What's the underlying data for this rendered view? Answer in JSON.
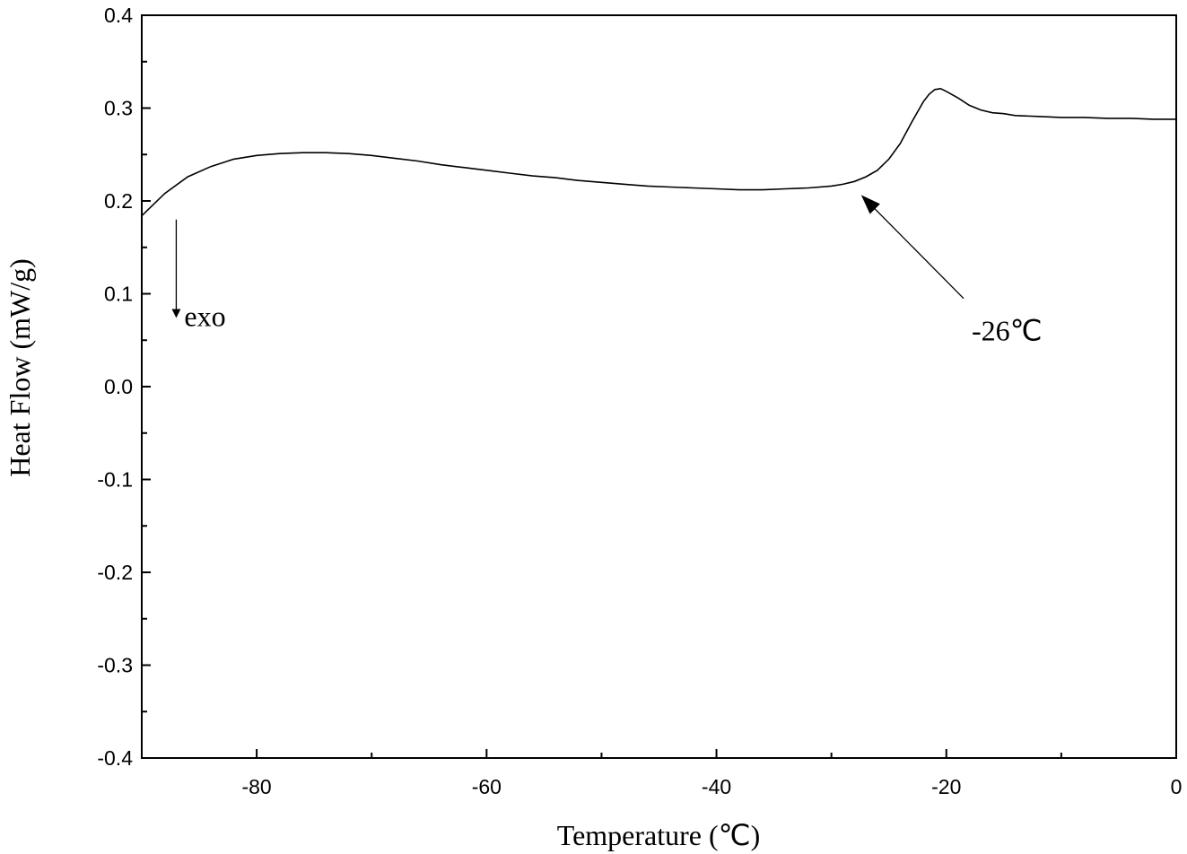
{
  "chart_data": {
    "type": "line",
    "xlabel": "Temperature (℃)",
    "ylabel": "Heat Flow (mW/g)",
    "xlim": [
      -90,
      0
    ],
    "ylim": [
      -0.4,
      0.4
    ],
    "x_ticks": [
      -80,
      -60,
      -40,
      -20,
      0
    ],
    "x_tick_labels": [
      "-80",
      "-60",
      "-40",
      "-20",
      "0"
    ],
    "y_ticks": [
      0.4,
      0.3,
      0.2,
      0.1,
      0.0,
      -0.1,
      -0.2,
      -0.3,
      -0.4
    ],
    "y_tick_labels": [
      "0.4",
      "0.3",
      "0.2",
      "0.1",
      "0.0",
      "-0.1",
      "-0.2",
      "-0.3",
      "-0.4"
    ],
    "grid": false,
    "series": [
      {
        "color": "#000000",
        "x": [
          -90,
          -88,
          -86,
          -84,
          -82,
          -80,
          -78,
          -76,
          -74,
          -72,
          -70,
          -68,
          -66,
          -64,
          -62,
          -60,
          -58,
          -56,
          -54,
          -52,
          -50,
          -48,
          -46,
          -44,
          -42,
          -40,
          -38,
          -36,
          -34,
          -32,
          -30,
          -29,
          -28,
          -27,
          -26,
          -25,
          -24,
          -23,
          -22,
          -21.5,
          -21,
          -20.5,
          -20,
          -19,
          -18,
          -17,
          -16,
          -15,
          -14,
          -12,
          -10,
          -8,
          -6,
          -4,
          -2,
          0
        ],
        "y": [
          0.184,
          0.208,
          0.226,
          0.237,
          0.245,
          0.249,
          0.251,
          0.252,
          0.252,
          0.251,
          0.249,
          0.246,
          0.243,
          0.239,
          0.236,
          0.233,
          0.23,
          0.227,
          0.225,
          0.222,
          0.22,
          0.218,
          0.216,
          0.215,
          0.214,
          0.213,
          0.212,
          0.212,
          0.213,
          0.214,
          0.216,
          0.218,
          0.221,
          0.226,
          0.233,
          0.245,
          0.262,
          0.285,
          0.307,
          0.315,
          0.32,
          0.321,
          0.318,
          0.311,
          0.303,
          0.298,
          0.295,
          0.294,
          0.292,
          0.291,
          0.29,
          0.29,
          0.289,
          0.289,
          0.288,
          0.288
        ]
      }
    ],
    "annotations": [
      {
        "text": "exo",
        "arrow_from": [
          -87,
          0.18
        ],
        "arrow_to": [
          -87,
          0.075
        ],
        "text_at": [
          -86.3,
          0.065
        ]
      },
      {
        "text": "-26℃",
        "arrow_from": [
          -18.5,
          0.095
        ],
        "arrow_to": [
          -27.3,
          0.205
        ],
        "text_at": [
          -17.8,
          0.05
        ]
      }
    ]
  }
}
